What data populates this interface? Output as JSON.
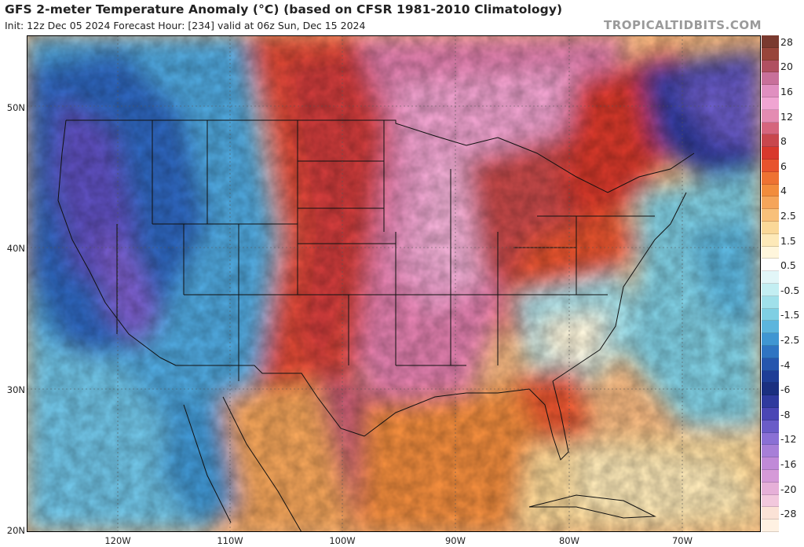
{
  "header": {
    "title": "GFS 2-meter Temperature Anomaly (°C) (based on CFSR 1981-2010 Climatology)",
    "subtitle": "Init: 12z Dec 05 2024   Forecast Hour: [234]   valid at 06z Sun, Dec 15 2024",
    "watermark": "TROPICALTIDBITS.COM"
  },
  "axes": {
    "lat_labels": [
      "50N",
      "40N",
      "30N",
      "20N"
    ],
    "lon_labels": [
      "120W",
      "110W",
      "100W",
      "90W",
      "80W",
      "70W"
    ]
  },
  "colorbar": {
    "levels": [
      {
        "label": "28",
        "color": "#7a3a2f"
      },
      {
        "label": "",
        "color": "#98453a"
      },
      {
        "label": "20",
        "color": "#b05061"
      },
      {
        "label": "",
        "color": "#c8709a"
      },
      {
        "label": "16",
        "color": "#e08fc0"
      },
      {
        "label": "",
        "color": "#f0a5d2"
      },
      {
        "label": "12",
        "color": "#e48cb2"
      },
      {
        "label": "",
        "color": "#d5657d"
      },
      {
        "label": "8",
        "color": "#c8474d"
      },
      {
        "label": "",
        "color": "#d8382c"
      },
      {
        "label": "6",
        "color": "#e8532d"
      },
      {
        "label": "",
        "color": "#ee7232"
      },
      {
        "label": "4",
        "color": "#f28c3c"
      },
      {
        "label": "",
        "color": "#f5a55a"
      },
      {
        "label": "2.5",
        "color": "#f8c07a"
      },
      {
        "label": "",
        "color": "#fad898"
      },
      {
        "label": "1.5",
        "color": "#fde9b8"
      },
      {
        "label": "",
        "color": "#fff6dc"
      },
      {
        "label": "0.5",
        "color": "#ffffff"
      },
      {
        "label": "",
        "color": "#e2f6f8"
      },
      {
        "label": "-0.5",
        "color": "#c3eef2"
      },
      {
        "label": "",
        "color": "#a0e0ea"
      },
      {
        "label": "-1.5",
        "color": "#7fcfe3"
      },
      {
        "label": "",
        "color": "#5cb5dd"
      },
      {
        "label": "-2.5",
        "color": "#3f96d2"
      },
      {
        "label": "",
        "color": "#2f74c2"
      },
      {
        "label": "-4",
        "color": "#2656ae"
      },
      {
        "label": "",
        "color": "#1e3d96"
      },
      {
        "label": "-6",
        "color": "#1a2f80"
      },
      {
        "label": "",
        "color": "#2f3a9e"
      },
      {
        "label": "-8",
        "color": "#4a46b5"
      },
      {
        "label": "",
        "color": "#6a5cc8"
      },
      {
        "label": "-12",
        "color": "#8a70d5"
      },
      {
        "label": "",
        "color": "#a77fd8"
      },
      {
        "label": "-16",
        "color": "#c08ad8"
      },
      {
        "label": "",
        "color": "#d59ad8"
      },
      {
        "label": "-20",
        "color": "#e6b0d8"
      },
      {
        "label": "",
        "color": "#f2c8dd"
      },
      {
        "label": "-28",
        "color": "#fbe2d6"
      },
      {
        "label": "",
        "color": "#fff1e2"
      }
    ]
  }
}
